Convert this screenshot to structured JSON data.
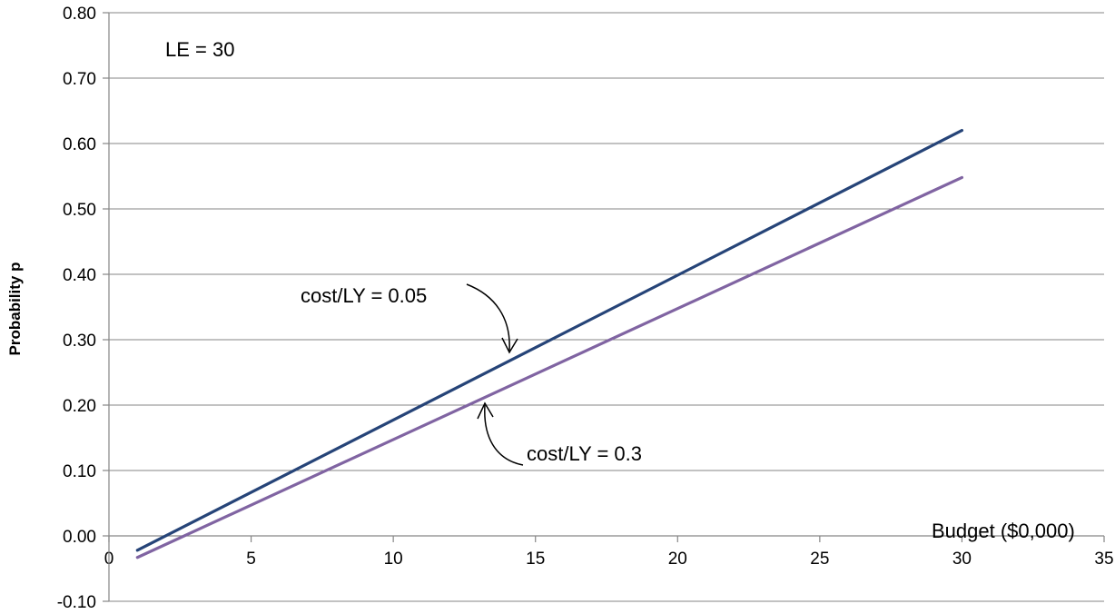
{
  "chart_data": {
    "type": "line",
    "title": "",
    "xlabel": "Budget ($0,000)",
    "ylabel": "Probability p",
    "xlim": [
      0,
      35
    ],
    "ylim": [
      -0.1,
      0.8
    ],
    "x_ticks": [
      "0",
      "5",
      "10",
      "15",
      "20",
      "25",
      "30",
      "35"
    ],
    "y_ticks": [
      "-0.10",
      "0.00",
      "0.10",
      "0.20",
      "0.30",
      "0.40",
      "0.50",
      "0.60",
      "0.70",
      "0.80"
    ],
    "grid": "horizontal",
    "series": [
      {
        "name": "cost/LY = 0.05",
        "color": "#264478",
        "x": [
          1,
          30
        ],
        "y": [
          -0.022,
          0.62
        ]
      },
      {
        "name": "cost/LY = 0.3",
        "color": "#8064a2",
        "x": [
          1,
          30
        ],
        "y": [
          -0.033,
          0.548
        ]
      }
    ],
    "annotations": {
      "le": "LE = 30",
      "series1_label": "cost/LY = 0.05",
      "series2_label": "cost/LY = 0.3"
    }
  }
}
